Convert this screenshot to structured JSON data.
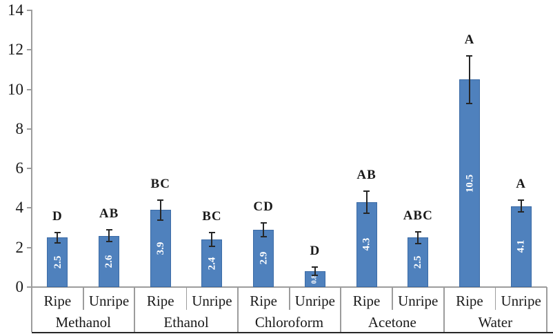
{
  "chart_data": {
    "type": "bar",
    "title": "",
    "xlabel": "",
    "ylabel": "",
    "ylim": [
      0,
      14
    ],
    "yticks": [
      "0",
      "2",
      "4",
      "6",
      "8",
      "10",
      "12",
      "14"
    ],
    "grid": false,
    "legend_position": "none",
    "categories": [
      "Methanol",
      "Ethanol",
      "Chloroform",
      "Acetone",
      "Water"
    ],
    "series_labels": [
      "Ripe",
      "Unripe"
    ],
    "groups": [
      {
        "category": "Methanol",
        "bars": [
          {
            "condition": "Ripe",
            "value": 2.5,
            "value_label": "2.5",
            "sig_letter": "D",
            "error": 0.25
          },
          {
            "condition": "Unripe",
            "value": 2.6,
            "value_label": "2.6",
            "sig_letter": "AB",
            "error": 0.3
          }
        ]
      },
      {
        "category": "Ethanol",
        "bars": [
          {
            "condition": "Ripe",
            "value": 3.9,
            "value_label": "3.9",
            "sig_letter": "BC",
            "error": 0.5
          },
          {
            "condition": "Unripe",
            "value": 2.4,
            "value_label": "2.4",
            "sig_letter": "BC",
            "error": 0.35
          }
        ]
      },
      {
        "category": "Chloroform",
        "bars": [
          {
            "condition": "Ripe",
            "value": 2.9,
            "value_label": "2.9",
            "sig_letter": "CD",
            "error": 0.35
          },
          {
            "condition": "Unripe",
            "value": 0.8,
            "value_label": "0.8",
            "sig_letter": "D",
            "error": 0.2
          }
        ]
      },
      {
        "category": "Acetone",
        "bars": [
          {
            "condition": "Ripe",
            "value": 4.3,
            "value_label": "4.3",
            "sig_letter": "AB",
            "error": 0.55
          },
          {
            "condition": "Unripe",
            "value": 2.5,
            "value_label": "2.5",
            "sig_letter": "ABC",
            "error": 0.3
          }
        ]
      },
      {
        "category": "Water",
        "bars": [
          {
            "condition": "Ripe",
            "value": 10.5,
            "value_label": "10.5",
            "sig_letter": "A",
            "error": 1.2
          },
          {
            "condition": "Unripe",
            "value": 4.1,
            "value_label": "4.1",
            "sig_letter": "A",
            "error": 0.3
          }
        ]
      }
    ],
    "colors": {
      "bar_fill": "#4f81bd",
      "bar_border": "#3a6aa5",
      "error_bar": "#262626",
      "axis_line": "#9c9c9c",
      "text": "#1a1a1a",
      "value_text": "#ffffff",
      "bottom_border": "#262626",
      "background": "#ffffff"
    }
  }
}
